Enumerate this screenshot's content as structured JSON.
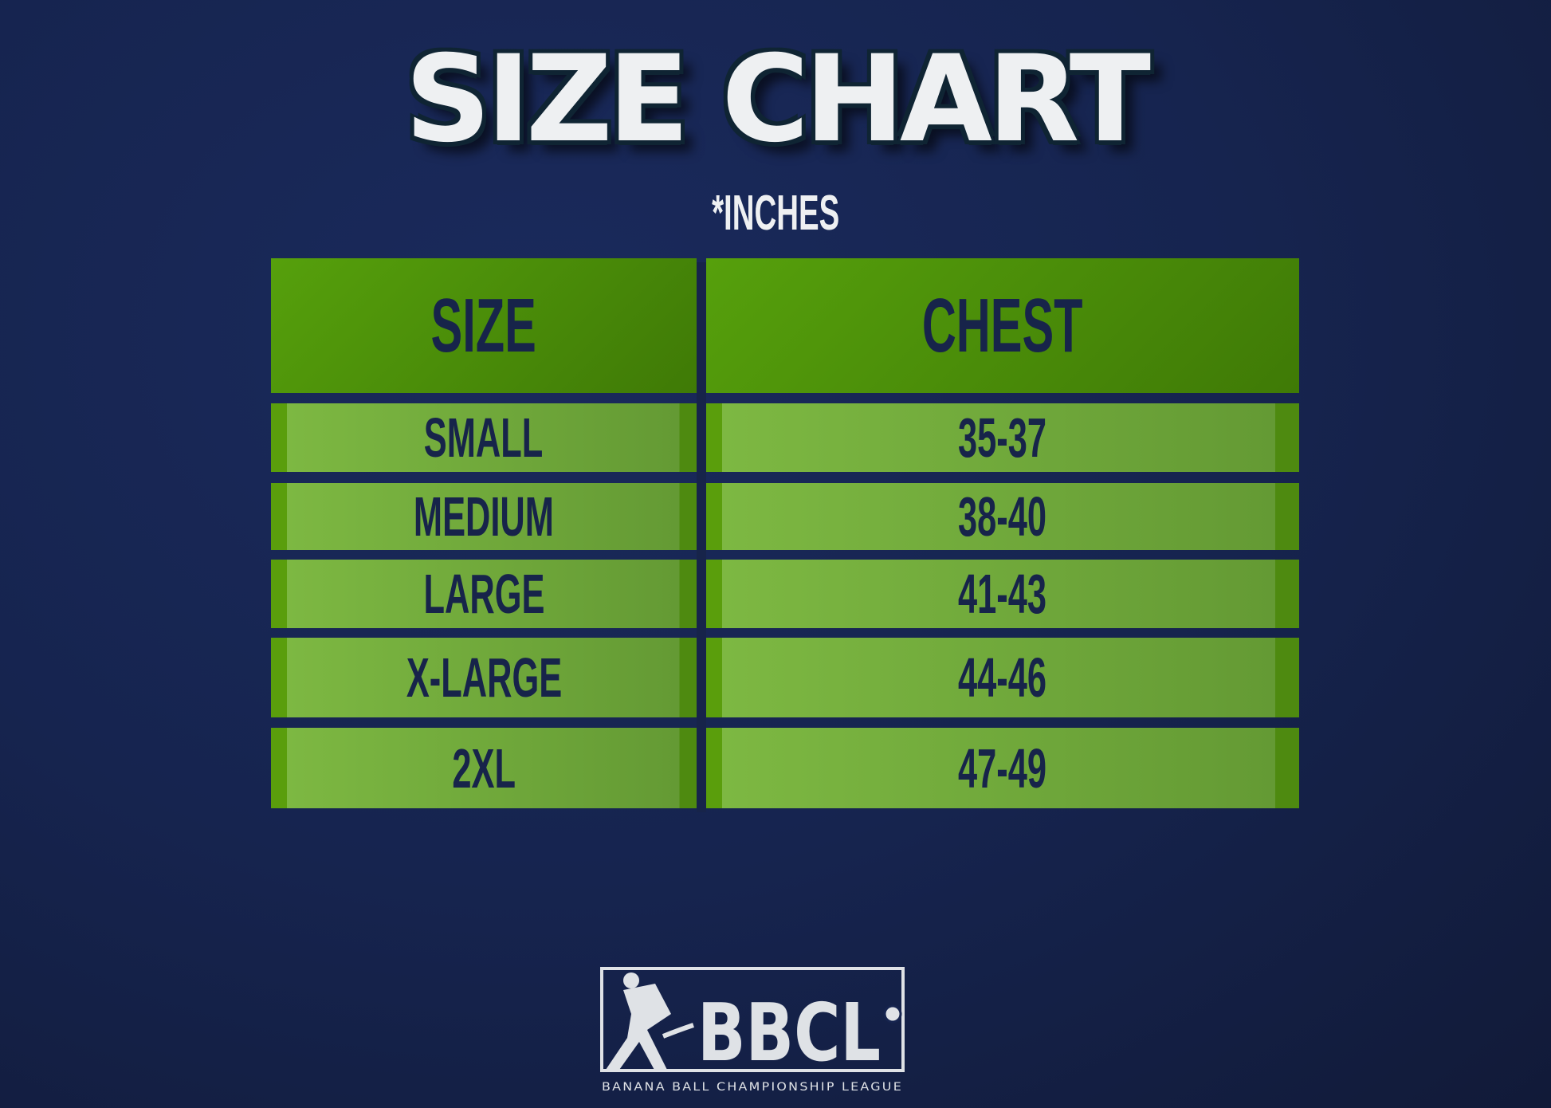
{
  "title": "SIZE CHART",
  "subtitle": "*INCHES",
  "chart_data": {
    "type": "table",
    "columns": [
      "SIZE",
      "CHEST"
    ],
    "rows": [
      [
        "SMALL",
        "35-37"
      ],
      [
        "MEDIUM",
        "38-40"
      ],
      [
        "LARGE",
        "41-43"
      ],
      [
        "X-LARGE",
        "44-46"
      ],
      [
        "2XL",
        "47-49"
      ]
    ]
  },
  "logo": {
    "text": "BBCL",
    "tagline": "BANANA BALL CHAMPIONSHIP LEAGUE"
  },
  "colors": {
    "background": "#16244f",
    "header_green": "#4e9410",
    "row_green": "#78b040",
    "text": "#17244a"
  }
}
